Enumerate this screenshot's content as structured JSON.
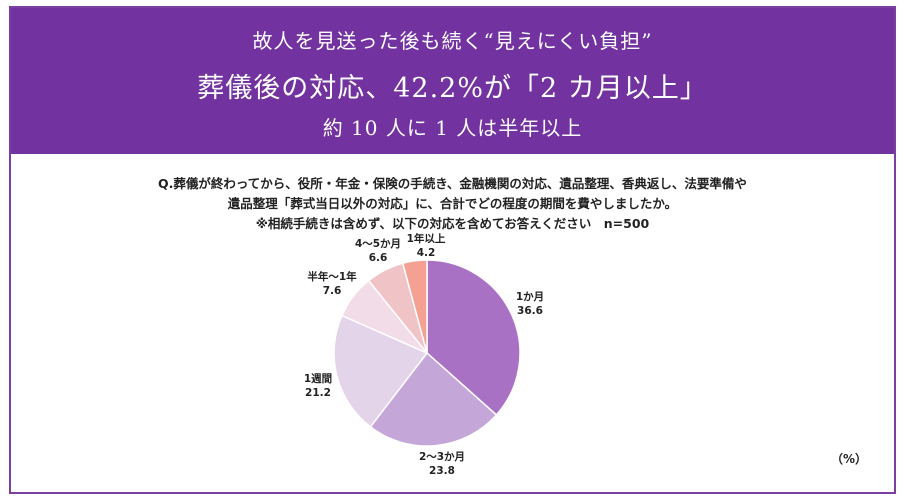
{
  "banner": {
    "line1": "故人を見送った後も続く“見えにくい負担”",
    "line2": "葬儀後の対応、42.2%が「2 カ月以上」",
    "line3": "約 10 人に 1 人は半年以上"
  },
  "question": {
    "line1": "Q.葬儀が終わってから、役所・年金・保険の手続き、金融機関の対応、遺品整理、香典返し、法要準備や",
    "line2": "遺品整理「葬式当日以外の対応」に、合計でどの程度の期間を費やしましたか。",
    "line3": "※相続手続きは含めず、以下の対応を含めてお答えください　n=500"
  },
  "unit": "（%）",
  "chart_data": {
    "type": "pie",
    "unit": "%",
    "n": 500,
    "categories": [
      "1か月",
      "2～3か月",
      "1週間",
      "半年～1年",
      "4～5か月",
      "1年以上"
    ],
    "values": [
      36.6,
      23.8,
      21.2,
      7.6,
      6.6,
      4.2
    ],
    "colors": [
      "#a971c4",
      "#c5a6d9",
      "#e3d4ea",
      "#f1dce8",
      "#f0c3c7",
      "#f4a092"
    ]
  }
}
